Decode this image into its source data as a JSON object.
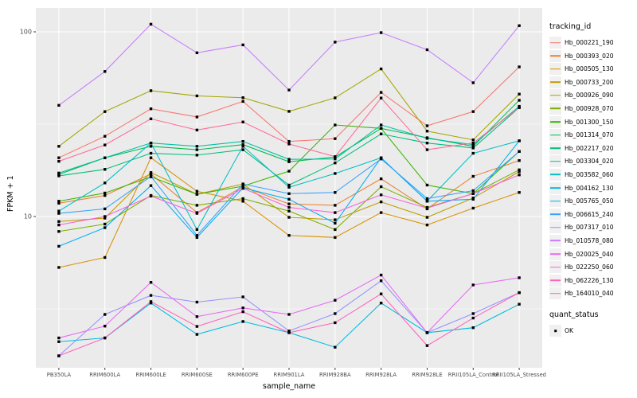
{
  "figure": {
    "background": "#FFFFFF",
    "panel_background": "#EBEBEB",
    "gridline_color": "#FFFFFF",
    "tick_color": "#333333",
    "tick_text_color": "#4D4D4D",
    "marker_color": "#000000"
  },
  "chart_data": {
    "type": "line",
    "title": "",
    "xlabel": "sample_name",
    "ylabel": "FPKM + 1",
    "y_scale": "log10",
    "ylim": [
      1.5,
      135
    ],
    "grid": true,
    "legend_position": "right",
    "y_tick_labels": [
      "100",
      "10"
    ],
    "y_tick_values": [
      100,
      10
    ],
    "y_minor_gridlines": [
      31.62,
      3.162
    ],
    "marker": "small-black-square",
    "categories": [
      "PB350LA",
      "RRIM600LA",
      "RRIM600LE",
      "RRIM600SE",
      "RRIM600PE",
      "RRIM901LA",
      "RRIM928BA",
      "RRIM928LA",
      "RRIM928LE",
      "RRII105LA_Control",
      "RRII105LA_Stressed"
    ],
    "series": [
      {
        "name": "Hb_000221_190",
        "color": "#F8766D",
        "values": [
          20.8,
          27.2,
          38.3,
          34.6,
          42.0,
          25.5,
          26.4,
          47.0,
          31.0,
          37.0,
          64.6
        ]
      },
      {
        "name": "Hb_000393_020",
        "color": "#EA8331",
        "values": [
          11.8,
          13.0,
          17.0,
          10.5,
          14.5,
          11.7,
          11.5,
          16.0,
          11.0,
          16.5,
          20.1
        ]
      },
      {
        "name": "Hb_000505_130",
        "color": "#D89000",
        "values": [
          5.3,
          6.0,
          20.8,
          13.7,
          12.1,
          7.9,
          7.7,
          10.5,
          9.0,
          11.1,
          13.5
        ]
      },
      {
        "name": "Hb_000733_200",
        "color": "#C09B00",
        "values": [
          9.4,
          9.8,
          17.3,
          13.2,
          15.0,
          9.9,
          9.6,
          12.0,
          9.9,
          12.6,
          17.5
        ]
      },
      {
        "name": "Hb_000926_090",
        "color": "#A3A500",
        "values": [
          24.0,
          37.0,
          48.0,
          45.0,
          44.0,
          37.1,
          43.9,
          63.0,
          29.0,
          26.0,
          46.0
        ]
      },
      {
        "name": "Hb_000928_070",
        "color": "#7CAE00",
        "values": [
          8.3,
          9.1,
          13.0,
          11.5,
          12.5,
          10.7,
          8.5,
          14.5,
          11.2,
          13.3,
          17.9
        ]
      },
      {
        "name": "Hb_001300_150",
        "color": "#39B600",
        "values": [
          12.1,
          13.4,
          16.4,
          13.2,
          14.6,
          17.6,
          31.3,
          30.0,
          14.8,
          13.3,
          22.5
        ]
      },
      {
        "name": "Hb_001314_070",
        "color": "#00BB4E",
        "values": [
          16.9,
          20.8,
          24.0,
          23.0,
          24.5,
          19.8,
          21.0,
          30.0,
          26.7,
          24.0,
          42.6
        ]
      },
      {
        "name": "Hb_002217_020",
        "color": "#00BF7D",
        "values": [
          16.6,
          18.0,
          22.0,
          21.5,
          23.0,
          14.8,
          19.5,
          28.0,
          25.0,
          23.5,
          38.9
        ]
      },
      {
        "name": "Hb_003304_020",
        "color": "#00C1A3",
        "values": [
          17.2,
          20.8,
          25.0,
          24.0,
          25.5,
          20.4,
          20.5,
          31.3,
          26.5,
          24.5,
          39.5
        ]
      },
      {
        "name": "Hb_003582_060",
        "color": "#00BFC4",
        "values": [
          10.7,
          15.2,
          25.0,
          8.5,
          24.0,
          14.4,
          17.1,
          20.8,
          12.1,
          22.0,
          25.7
        ]
      },
      {
        "name": "Hb_004162_130",
        "color": "#00BAE0",
        "values": [
          2.1,
          2.2,
          3.4,
          2.3,
          2.7,
          2.35,
          1.96,
          3.4,
          2.35,
          2.5,
          3.35
        ]
      },
      {
        "name": "Hb_005765_050",
        "color": "#00B0F6",
        "values": [
          6.9,
          8.7,
          14.7,
          7.7,
          14.3,
          12.4,
          9.2,
          20.8,
          12.1,
          12.4,
          25.7
        ]
      },
      {
        "name": "Hb_006615_240",
        "color": "#35A2FF",
        "values": [
          10.4,
          11.0,
          16.5,
          7.9,
          15.0,
          13.3,
          13.5,
          20.5,
          12.5,
          13.8,
          22.5
        ]
      },
      {
        "name": "Hb_007317_010",
        "color": "#9590FF",
        "values": [
          1.76,
          2.95,
          3.74,
          3.44,
          3.67,
          2.4,
          2.98,
          4.49,
          2.35,
          2.98,
          3.87
        ]
      },
      {
        "name": "Hb_010578_080",
        "color": "#C77CFF",
        "values": [
          40.0,
          61.0,
          110.0,
          77.0,
          85.0,
          48.4,
          88.0,
          99.0,
          80.0,
          53.0,
          108.0
        ]
      },
      {
        "name": "Hb_020025_040",
        "color": "#E76BF3",
        "values": [
          2.2,
          2.55,
          4.4,
          2.87,
          3.2,
          2.95,
          3.52,
          4.82,
          2.35,
          4.26,
          4.66
        ]
      },
      {
        "name": "Hb_022250_060",
        "color": "#FA62DB",
        "values": [
          9.0,
          10.0,
          12.9,
          10.4,
          14.2,
          11.2,
          10.5,
          13.1,
          11.1,
          13.3,
          16.8
        ]
      },
      {
        "name": "Hb_062226_130",
        "color": "#FF62BC",
        "values": [
          1.76,
          2.2,
          3.46,
          2.54,
          3.05,
          2.35,
          2.66,
          3.81,
          2.0,
          2.82,
          3.87
        ]
      },
      {
        "name": "Hb_164010_040",
        "color": "#FF6A98",
        "values": [
          19.9,
          24.4,
          33.8,
          29.4,
          32.5,
          24.7,
          21.1,
          43.8,
          23.0,
          25.0,
          38.9
        ]
      }
    ]
  },
  "legend": {
    "title": "tracking_id"
  },
  "legend2": {
    "title": "quant_status",
    "items": [
      {
        "label": "OK",
        "marker": "black-square"
      }
    ]
  }
}
